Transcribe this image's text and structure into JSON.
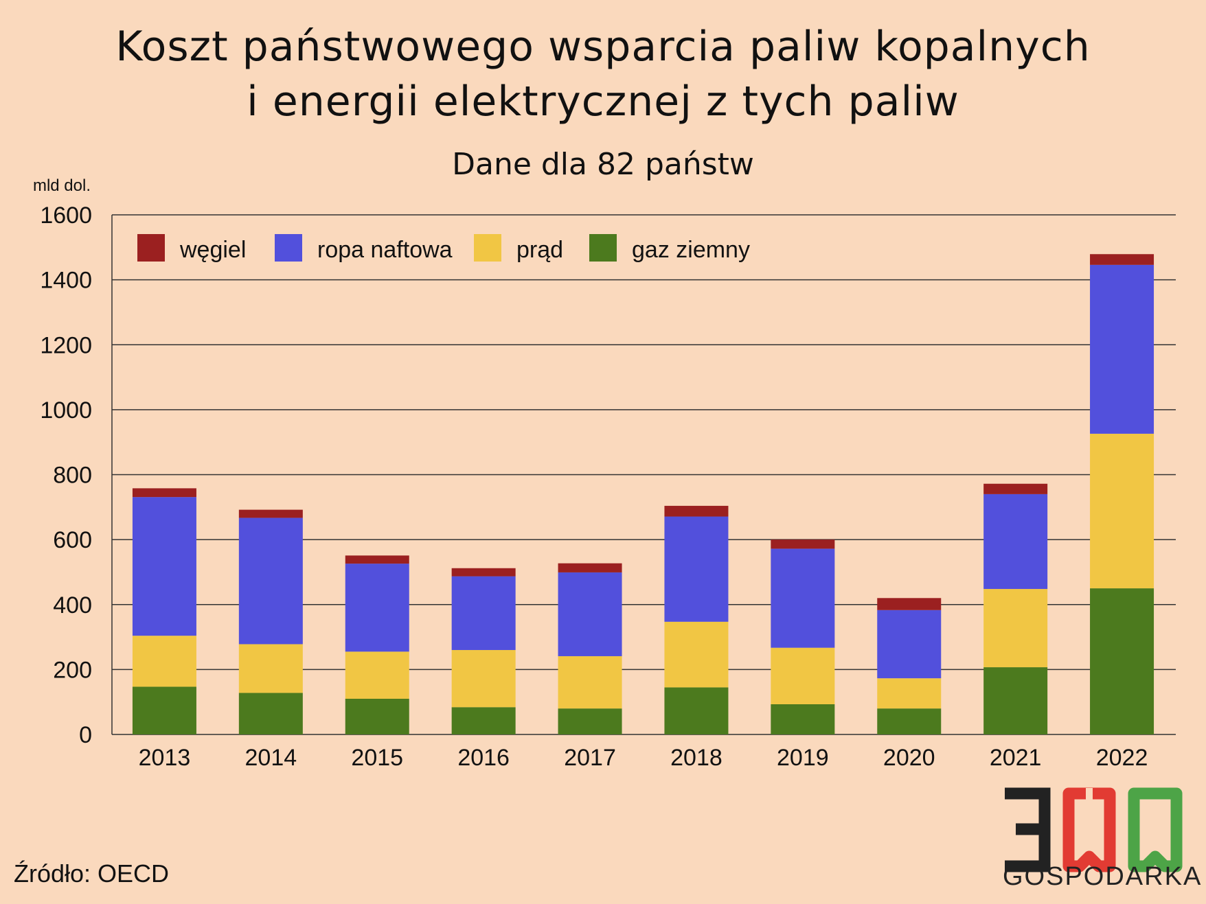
{
  "header": {
    "title_line1": "Koszt państwowego wsparcia paliw kopalnych",
    "title_line2": "i energii elektrycznej z tych paliw",
    "subtitle": "Dane dla 82 państw"
  },
  "footer": {
    "source": "Źródło: OECD",
    "logo_number": "300",
    "logo_word": "GOSPODARKA"
  },
  "colors": {
    "background": "#fad9bd",
    "coal": "#9b2020",
    "oil": "#5250dc",
    "electricity": "#f1c644",
    "gas": "#4c7a1e",
    "logo_dark": "#222222",
    "logo_red": "#e23b33",
    "logo_green": "#4da447"
  },
  "chart_data": {
    "type": "bar",
    "stacked": true,
    "ylabel": "mld dol.",
    "ylim": [
      0,
      1600
    ],
    "yticks": [
      0,
      200,
      400,
      600,
      800,
      1000,
      1200,
      1400,
      1600
    ],
    "grid": true,
    "legend_position": "top-left",
    "categories": [
      "2013",
      "2014",
      "2015",
      "2016",
      "2017",
      "2018",
      "2019",
      "2020",
      "2021",
      "2022"
    ],
    "series": [
      {
        "name": "gaz ziemny",
        "color": "#4c7a1e",
        "values": [
          147,
          128,
          110,
          84,
          80,
          145,
          93,
          80,
          207,
          450
        ]
      },
      {
        "name": "prąd",
        "color": "#f1c644",
        "values": [
          157,
          150,
          145,
          176,
          161,
          202,
          174,
          93,
          241,
          476
        ]
      },
      {
        "name": "ropa naftowa",
        "color": "#5250dc",
        "values": [
          427,
          389,
          271,
          227,
          258,
          324,
          305,
          210,
          292,
          520
        ]
      },
      {
        "name": "węgiel",
        "color": "#9b2020",
        "values": [
          27,
          25,
          25,
          25,
          28,
          33,
          28,
          37,
          32,
          33
        ]
      }
    ],
    "legend_order": [
      "węgiel",
      "ropa naftowa",
      "prąd",
      "gaz ziemny"
    ]
  }
}
